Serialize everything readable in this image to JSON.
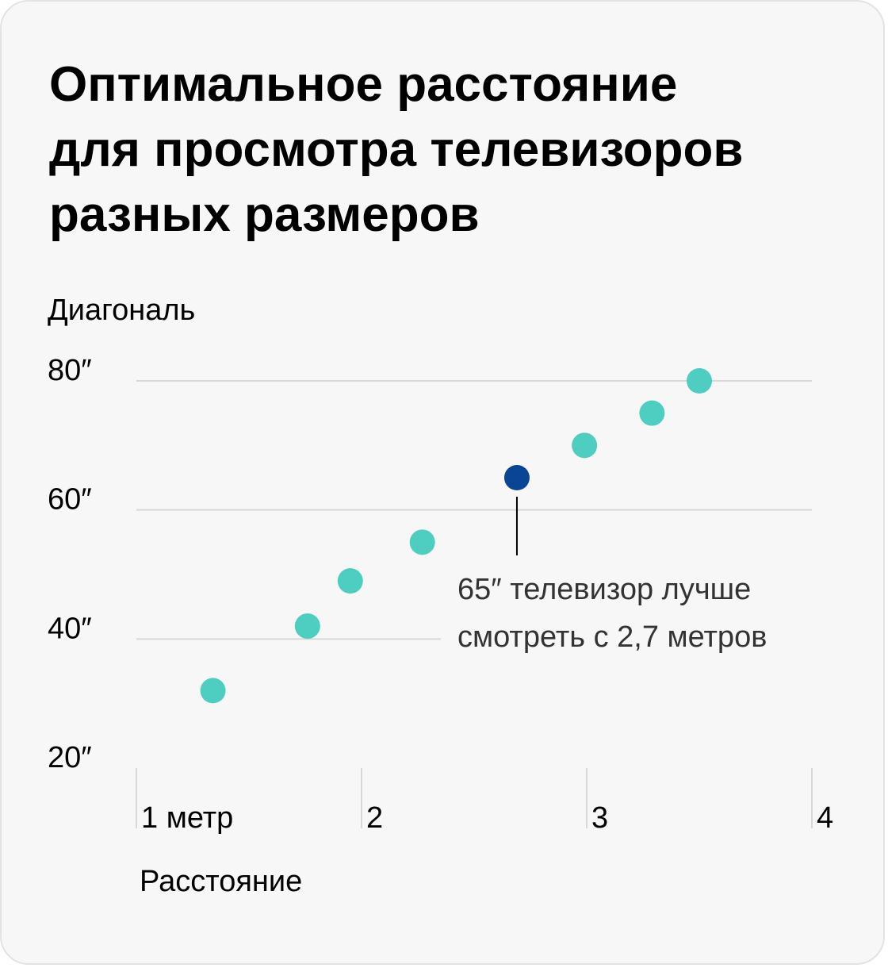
{
  "title_lines": [
    "Оптимальное расстояние",
    "для просмотра телевизоров",
    "разных размеров"
  ],
  "colors": {
    "background": "#f7f7f7",
    "point": "#4ecdc1",
    "highlight": "#0a4595",
    "grid": "#d8d8d8",
    "text": "#000000",
    "annotation_text": "#333333"
  },
  "chart_data": {
    "type": "scatter",
    "title": "Оптимальное расстояние для просмотра телевизоров разных размеров",
    "xlabel": "Расстояние",
    "ylabel": "Диагональ",
    "xlim": [
      1,
      4
    ],
    "ylim": [
      20,
      80
    ],
    "x_ticks": [
      {
        "value": 1,
        "label": "1 метр"
      },
      {
        "value": 2,
        "label": "2"
      },
      {
        "value": 3,
        "label": "3"
      },
      {
        "value": 4,
        "label": "4"
      }
    ],
    "y_ticks": [
      {
        "value": 20,
        "label": "20″"
      },
      {
        "value": 40,
        "label": "40″"
      },
      {
        "value": 60,
        "label": "60″"
      },
      {
        "value": 80,
        "label": "80″"
      }
    ],
    "grid": "horizontal",
    "points": [
      {
        "x": 1.34,
        "y": 32,
        "highlight": false
      },
      {
        "x": 1.76,
        "y": 42,
        "highlight": false
      },
      {
        "x": 1.95,
        "y": 49,
        "highlight": false
      },
      {
        "x": 2.27,
        "y": 55,
        "highlight": false
      },
      {
        "x": 2.69,
        "y": 65,
        "highlight": true
      },
      {
        "x": 2.99,
        "y": 70,
        "highlight": false
      },
      {
        "x": 3.29,
        "y": 75,
        "highlight": false
      },
      {
        "x": 3.5,
        "y": 80,
        "highlight": false
      }
    ],
    "annotation": {
      "lines": [
        "65″ телевизор лучше",
        "смотреть с 2,7 метров"
      ]
    }
  }
}
